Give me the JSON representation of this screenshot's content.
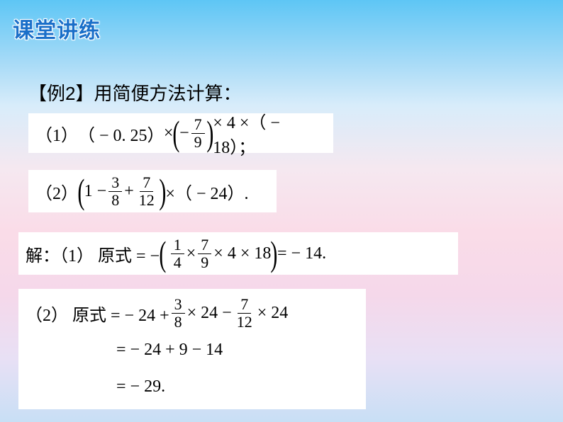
{
  "title": "课堂讲练",
  "example_prefix": "【例2】",
  "example_text": "用简便方法计算：",
  "problems": {
    "p1": {
      "label": "（1）",
      "expr_a": "（ − 0. 25）",
      "times1": " × ",
      "lp": "(",
      "neg": " − ",
      "f1_num": "7",
      "f1_den": "9",
      "rp": ")",
      "times2": " × 4 ×（ − 18）；"
    },
    "p2": {
      "label": "（2）",
      "lp": "(",
      "one": "1 − ",
      "f1_num": "3",
      "f1_den": "8",
      "plus": " + ",
      "f2_num": "7",
      "f2_den": "12",
      "rp": ")",
      "tail": " ×（ − 24）."
    }
  },
  "solutions": {
    "s1": {
      "prefix": "解：（1） 原式 =  − ",
      "lp": "(",
      "f1_num": "1",
      "f1_den": "4",
      "t1": " × ",
      "f2_num": "7",
      "f2_den": "9",
      "tail_in": " × 4 × 18",
      "rp": ")",
      "result": " =  − 14."
    },
    "s2": {
      "line1_prefix": "（2） 原式 =  − 24 + ",
      "f1_num": "3",
      "f1_den": "8",
      "mid1": " × 24 − ",
      "f2_num": "7",
      "f2_den": "12",
      "mid2": " × 24",
      "line2": "=  − 24 + 9 − 14",
      "line3": "=  − 29."
    }
  },
  "colors": {
    "title_color": "#1a6fc9",
    "text_color": "#000000",
    "box_bg": "#ffffff",
    "grad_top": "#5ec6f5",
    "grad_mid": "#fadce8",
    "grad_bottom": "#c8dff5"
  },
  "fonts": {
    "title_size_pt": 22,
    "body_size_pt": 18,
    "math_size_pt": 18
  }
}
